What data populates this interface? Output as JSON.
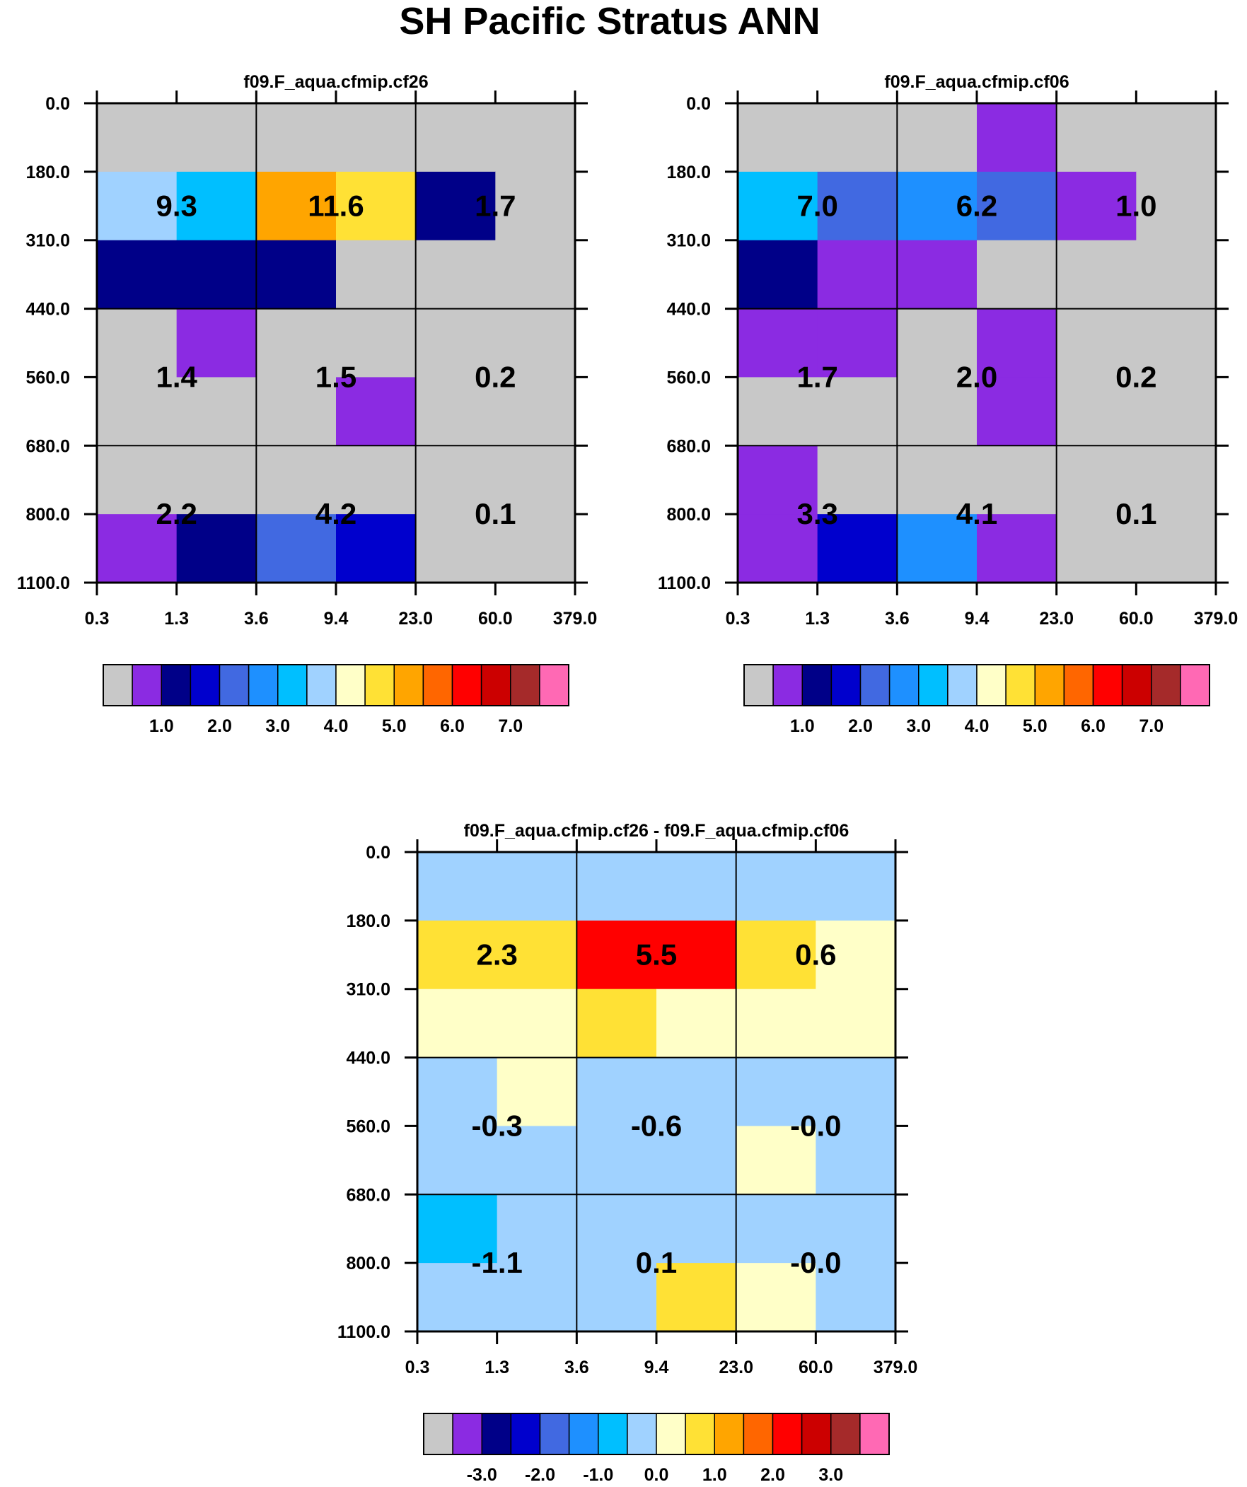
{
  "title": "SH Pacific Stratus ANN",
  "x_tick_labels": [
    "0.3",
    "1.3",
    "3.6",
    "9.4",
    "23.0",
    "60.0",
    "379.0"
  ],
  "y_tick_labels": [
    "0.0",
    "180.0",
    "310.0",
    "440.0",
    "560.0",
    "680.0",
    "800.0",
    "1100.0"
  ],
  "chart_data": [
    {
      "type": "heatmap",
      "title": "f09.F_aqua.cfmip.cf26",
      "xlabel": "",
      "ylabel": "",
      "x_ticks": [
        "0.3",
        "1.3",
        "3.6",
        "9.4",
        "23.0",
        "60.0",
        "379.0"
      ],
      "y_ticks": [
        "0.0",
        "180.0",
        "310.0",
        "440.0",
        "560.0",
        "680.0",
        "800.0",
        "1100.0"
      ],
      "cell_color_index": [
        [
          0,
          0,
          0,
          0,
          0,
          0
        ],
        [
          7,
          6,
          10,
          9,
          2,
          0
        ],
        [
          2,
          2,
          2,
          0,
          0,
          0
        ],
        [
          0,
          1,
          0,
          0,
          0,
          0
        ],
        [
          0,
          0,
          0,
          1,
          0,
          0
        ],
        [
          0,
          0,
          0,
          0,
          0,
          0
        ],
        [
          1,
          2,
          4,
          3,
          0,
          0
        ]
      ],
      "box_labels": [
        [
          "9.3",
          "11.6",
          "1.7"
        ],
        [
          "1.4",
          "1.5",
          "0.2"
        ],
        [
          "2.2",
          "4.2",
          "0.1"
        ]
      ],
      "colorbar": {
        "colors": [
          "#c8c8c8",
          "#8b2be2",
          "#000088",
          "#0000cd",
          "#4169e1",
          "#1e90ff",
          "#00bfff",
          "#a0d2ff",
          "#ffffc8",
          "#ffe135",
          "#ffa500",
          "#ff6600",
          "#ff0000",
          "#cc0000",
          "#a52a2a",
          "#ff69b4"
        ],
        "labels": [
          "1.0",
          "2.0",
          "3.0",
          "4.0",
          "5.0",
          "6.0",
          "7.0"
        ]
      }
    },
    {
      "type": "heatmap",
      "title": "f09.F_aqua.cfmip.cf06",
      "xlabel": "",
      "ylabel": "",
      "x_ticks": [
        "0.3",
        "1.3",
        "3.6",
        "9.4",
        "23.0",
        "60.0",
        "379.0"
      ],
      "y_ticks": [
        "0.0",
        "180.0",
        "310.0",
        "440.0",
        "560.0",
        "680.0",
        "800.0",
        "1100.0"
      ],
      "cell_color_index": [
        [
          0,
          0,
          0,
          1,
          0,
          0
        ],
        [
          6,
          4,
          5,
          4,
          1,
          0
        ],
        [
          2,
          1,
          1,
          0,
          0,
          0
        ],
        [
          1,
          1,
          0,
          1,
          0,
          0
        ],
        [
          0,
          0,
          0,
          1,
          0,
          0
        ],
        [
          1,
          0,
          0,
          0,
          0,
          0
        ],
        [
          1,
          3,
          5,
          1,
          0,
          0
        ]
      ],
      "box_labels": [
        [
          "7.0",
          "6.2",
          "1.0"
        ],
        [
          "1.7",
          "2.0",
          "0.2"
        ],
        [
          "3.3",
          "4.1",
          "0.1"
        ]
      ],
      "colorbar": {
        "colors": [
          "#c8c8c8",
          "#8b2be2",
          "#000088",
          "#0000cd",
          "#4169e1",
          "#1e90ff",
          "#00bfff",
          "#a0d2ff",
          "#ffffc8",
          "#ffe135",
          "#ffa500",
          "#ff6600",
          "#ff0000",
          "#cc0000",
          "#a52a2a",
          "#ff69b4"
        ],
        "labels": [
          "1.0",
          "2.0",
          "3.0",
          "4.0",
          "5.0",
          "6.0",
          "7.0"
        ]
      }
    },
    {
      "type": "heatmap",
      "title": "f09.F_aqua.cfmip.cf26 - f09.F_aqua.cfmip.cf06",
      "xlabel": "",
      "ylabel": "",
      "x_ticks": [
        "0.3",
        "1.3",
        "3.6",
        "9.4",
        "23.0",
        "60.0",
        "379.0"
      ],
      "y_ticks": [
        "0.0",
        "180.0",
        "310.0",
        "440.0",
        "560.0",
        "680.0",
        "800.0",
        "1100.0"
      ],
      "cell_color_index": [
        [
          7,
          7,
          7,
          7,
          7,
          7
        ],
        [
          9,
          9,
          12,
          12,
          9,
          8
        ],
        [
          8,
          8,
          9,
          8,
          8,
          8
        ],
        [
          7,
          8,
          7,
          7,
          7,
          7
        ],
        [
          7,
          7,
          7,
          7,
          8,
          7
        ],
        [
          6,
          7,
          7,
          7,
          7,
          7
        ],
        [
          7,
          7,
          7,
          9,
          8,
          7
        ]
      ],
      "box_labels": [
        [
          "2.3",
          "5.5",
          "0.6"
        ],
        [
          "-0.3",
          "-0.6",
          "-0.0"
        ],
        [
          "-1.1",
          "0.1",
          "-0.0"
        ]
      ],
      "colorbar": {
        "colors": [
          "#c8c8c8",
          "#8b2be2",
          "#000088",
          "#0000cd",
          "#4169e1",
          "#1e90ff",
          "#00bfff",
          "#a0d2ff",
          "#ffffc8",
          "#ffe135",
          "#ffa500",
          "#ff6600",
          "#ff0000",
          "#cc0000",
          "#a52a2a",
          "#ff69b4"
        ],
        "labels": [
          "-3.0",
          "-2.0",
          "-1.0",
          "0.0",
          "1.0",
          "2.0",
          "3.0"
        ]
      }
    }
  ]
}
